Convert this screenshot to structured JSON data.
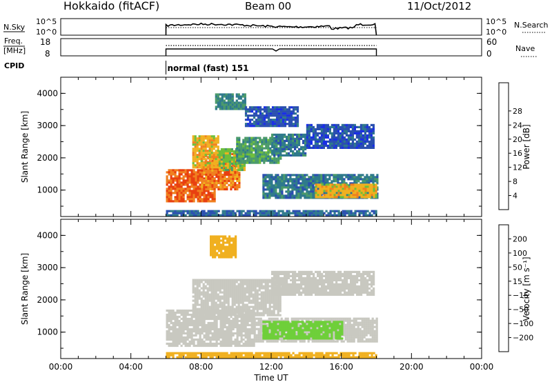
{
  "header": {
    "station": "Hokkaido (fitACF)",
    "beam": "Beam 00",
    "date": "11/Oct/2012"
  },
  "nsky_panel": {
    "left_label": "N.Sky",
    "left_ticks": [
      "10^5",
      "10^0"
    ],
    "right_ticks": [
      "10^5",
      "10^0"
    ],
    "right_label": "N.Search"
  },
  "freq_panel": {
    "left_label_1": "Freq.",
    "left_label_2": "[MHz]",
    "left_ticks": [
      "18",
      "8"
    ],
    "right_ticks": [
      "60",
      "0"
    ],
    "right_label": "Nave"
  },
  "cpid": {
    "label": "CPID",
    "mode": "normal (fast) 151"
  },
  "chart_data": [
    {
      "type": "heatmap",
      "quantity": "Power",
      "ylabel": "Slant Range [km]",
      "yticks": [
        1000,
        2000,
        3000,
        4000
      ],
      "ylim": [
        180,
        4500
      ],
      "xlim_hours": [
        0,
        24
      ],
      "data_start_hours": 6,
      "data_end_hours": 18,
      "colorbar": {
        "label": "Power [dB]",
        "ticks": [
          "4",
          "8",
          "12",
          "16",
          "20",
          "24",
          "28"
        ],
        "colors": [
          "#1a2de8",
          "#2a4fb0",
          "#2f7a8c",
          "#4a9a6a",
          "#6fbf3a",
          "#f0b020",
          "#f08020",
          "#e84010",
          "#e81010"
        ]
      },
      "regions": [
        {
          "t0": 6.0,
          "t1": 8.8,
          "r0": 650,
          "r1": 1650,
          "level": 28
        },
        {
          "t0": 8.0,
          "t1": 10.2,
          "r0": 1000,
          "r1": 2150,
          "level": 26
        },
        {
          "t0": 7.5,
          "t1": 9.0,
          "r0": 1700,
          "r1": 2700,
          "level": 22
        },
        {
          "t0": 9.0,
          "t1": 10.5,
          "r0": 1650,
          "r1": 2300,
          "level": 18
        },
        {
          "t0": 10.0,
          "t1": 12.5,
          "r0": 1850,
          "r1": 2650,
          "level": 14
        },
        {
          "t0": 12.0,
          "t1": 14.0,
          "r0": 2100,
          "r1": 2750,
          "level": 10
        },
        {
          "t0": 14.0,
          "t1": 17.8,
          "r0": 2300,
          "r1": 3050,
          "level": 6
        },
        {
          "t0": 11.5,
          "t1": 18.0,
          "r0": 750,
          "r1": 1500,
          "level": 10
        },
        {
          "t0": 14.5,
          "t1": 18.0,
          "r0": 800,
          "r1": 1200,
          "level": 22
        },
        {
          "t0": 8.8,
          "t1": 10.5,
          "r0": 3500,
          "r1": 4000,
          "level": 12
        },
        {
          "t0": 10.5,
          "t1": 13.5,
          "r0": 3000,
          "r1": 3600,
          "level": 6
        },
        {
          "t0": 6.0,
          "t1": 18.0,
          "r0": 200,
          "r1": 380,
          "level": 8
        }
      ]
    },
    {
      "type": "heatmap",
      "quantity": "Velocity",
      "ylabel": "Slant Range [km]",
      "yticks": [
        1000,
        2000,
        3000,
        4000
      ],
      "ylim": [
        180,
        4500
      ],
      "xlim_hours": [
        0,
        24
      ],
      "data_start_hours": 6,
      "data_end_hours": 18,
      "colorbar": {
        "label": "Velocity [m s⁻¹]",
        "ticks": [
          "200",
          "100",
          "50",
          "15",
          "−15",
          "−50",
          "−100",
          "−200"
        ],
        "colors": [
          "#1a2de8",
          "#2a4fb0",
          "#2f8a6a",
          "#6fcf3a",
          "#c8c8c0",
          "#f0b020",
          "#f08020",
          "#e84010",
          "#e81010"
        ]
      },
      "regions": [
        {
          "t0": 6.0,
          "t1": 11.0,
          "r0": 550,
          "r1": 1700,
          "level": 0
        },
        {
          "t0": 7.5,
          "t1": 12.5,
          "r0": 1500,
          "r1": 2650,
          "level": 0
        },
        {
          "t0": 12.0,
          "t1": 17.8,
          "r0": 2150,
          "r1": 2900,
          "level": 0
        },
        {
          "t0": 11.0,
          "t1": 18.0,
          "r0": 700,
          "r1": 1450,
          "level": 0
        },
        {
          "t0": 11.5,
          "t1": 16.0,
          "r0": 800,
          "r1": 1350,
          "level": 30
        },
        {
          "t0": 8.5,
          "t1": 10.0,
          "r0": 3300,
          "r1": 4000,
          "level": -30
        },
        {
          "t0": 6.0,
          "t1": 18.0,
          "r0": 200,
          "r1": 380,
          "level": -30
        }
      ]
    }
  ],
  "time_axis": {
    "label": "Time UT",
    "ticks": [
      "00:00",
      "04:00",
      "08:00",
      "12:00",
      "16:00",
      "20:00",
      "00:00"
    ]
  }
}
